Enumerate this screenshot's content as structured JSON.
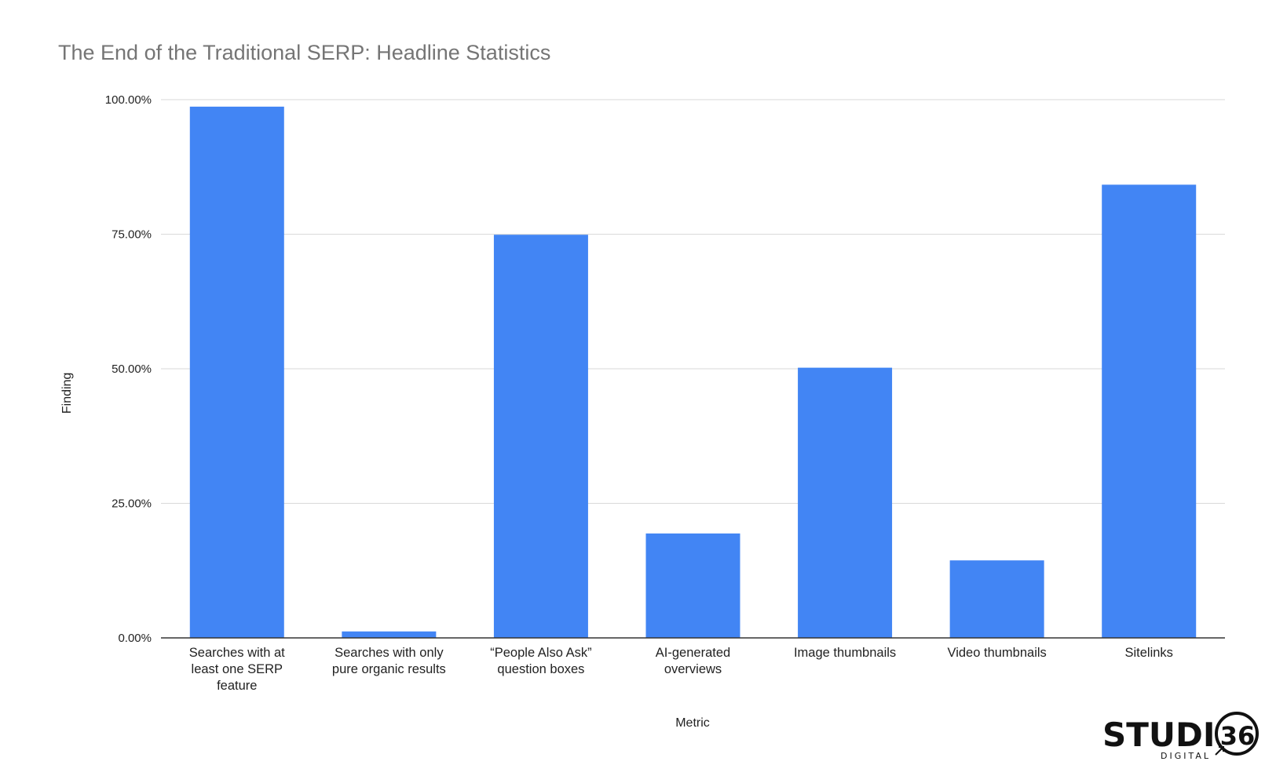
{
  "chart_data": {
    "type": "bar",
    "title": "The End of the Traditional SERP: Headline Statistics",
    "xlabel": "Metric",
    "ylabel": "Finding",
    "ylim": [
      0,
      100
    ],
    "yticks": [
      "0.00%",
      "25.00%",
      "50.00%",
      "75.00%",
      "100.00%"
    ],
    "grid": true,
    "legend": "none",
    "bar_color": "#4285F4",
    "categories": [
      [
        "Searches with at",
        "least one SERP",
        "feature"
      ],
      [
        "Searches with only",
        "pure organic results"
      ],
      [
        "“People Also Ask”",
        "question boxes"
      ],
      [
        "AI-generated",
        "overviews"
      ],
      [
        "Image thumbnails"
      ],
      [
        "Video thumbnails"
      ],
      [
        "Sitelinks"
      ]
    ],
    "values": [
      98.7,
      1.2,
      74.9,
      19.4,
      50.2,
      14.4,
      84.2
    ]
  },
  "logo": {
    "main": "STUDI",
    "number": "36",
    "sub": "DIGITAL"
  }
}
